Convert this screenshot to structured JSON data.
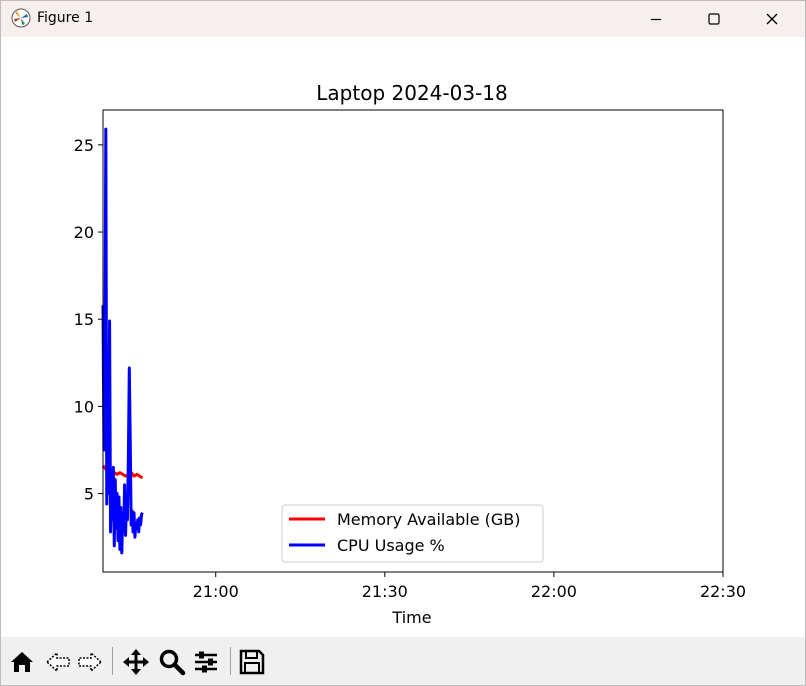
{
  "window": {
    "title": "Figure 1",
    "controls": {
      "minimize": "minimize",
      "maximize": "maximize",
      "close": "close"
    }
  },
  "toolbar": {
    "buttons": [
      "home-icon",
      "back-icon",
      "forward-icon",
      "pan-icon",
      "zoom-icon",
      "configure-subplots-icon",
      "save-icon"
    ]
  },
  "colors": {
    "memory": "#ff0000",
    "cpu": "#0000ff",
    "titlebar": "#f7eeee",
    "toolbar": "#f0f0f0"
  },
  "chart_data": {
    "type": "line",
    "title": "Laptop 2024-03-18",
    "xlabel": "Time",
    "ylabel": "",
    "xticks": [
      "21:00",
      "21:30",
      "22:00",
      "22:30"
    ],
    "yticks": [
      5,
      10,
      15,
      20,
      25
    ],
    "xlim": [
      "20:40",
      "22:30"
    ],
    "ylim": [
      0.5,
      27
    ],
    "legend_placement": "lower center",
    "legend": [
      "Memory Available (GB)",
      "CPU Usage %"
    ],
    "series": [
      {
        "name": "Memory Available (GB)",
        "color": "#ff0000",
        "x": [
          "20:40:00",
          "20:40:30",
          "20:41:00",
          "20:41:30",
          "20:42:00",
          "20:42:30",
          "20:43:00",
          "20:43:30",
          "20:44:00",
          "20:44:30",
          "20:45:00",
          "20:45:30",
          "20:46:00",
          "20:46:30",
          "20:47:00"
        ],
        "values": [
          6.6,
          6.4,
          6.3,
          6.2,
          6.2,
          6.1,
          6.2,
          6.1,
          6.0,
          6.1,
          6.2,
          6.0,
          6.1,
          6.0,
          5.9
        ]
      },
      {
        "name": "CPU Usage %",
        "color": "#0000ff",
        "x": [
          "20:40:00",
          "20:40:10",
          "20:40:20",
          "20:40:30",
          "20:40:40",
          "20:40:50",
          "20:41:00",
          "20:41:10",
          "20:41:20",
          "20:41:30",
          "20:41:40",
          "20:41:50",
          "20:42:00",
          "20:42:10",
          "20:42:20",
          "20:42:30",
          "20:42:40",
          "20:42:50",
          "20:43:00",
          "20:43:10",
          "20:43:20",
          "20:43:30",
          "20:43:40",
          "20:43:50",
          "20:44:00",
          "20:44:10",
          "20:44:20",
          "20:44:30",
          "20:44:40",
          "20:44:50",
          "20:45:00",
          "20:45:10",
          "20:45:20",
          "20:45:30",
          "20:45:40",
          "20:45:50",
          "20:46:00",
          "20:46:10",
          "20:46:20",
          "20:46:30",
          "20:46:40",
          "20:46:50",
          "20:47:00"
        ],
        "values": [
          15.8,
          7.5,
          12.0,
          25.9,
          4.4,
          12.2,
          5.0,
          14.9,
          2.8,
          5.5,
          3.5,
          6.5,
          2.0,
          5.8,
          3.0,
          5.0,
          2.3,
          4.8,
          1.8,
          4.2,
          1.6,
          3.8,
          2.8,
          5.5,
          2.6,
          4.5,
          3.5,
          7.0,
          12.2,
          8.0,
          3.2,
          4.0,
          2.8,
          3.9,
          2.5,
          3.3,
          3.0,
          3.5,
          2.8,
          3.6,
          3.2,
          3.8,
          3.9
        ]
      }
    ]
  }
}
